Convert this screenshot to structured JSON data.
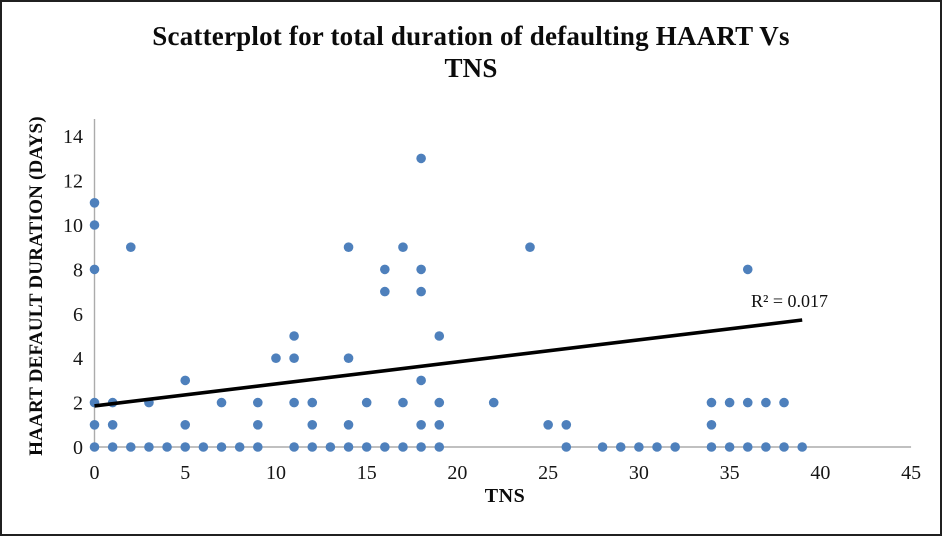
{
  "figure": {
    "title_line1": "Scatterplot for total duration of defaulting HAART Vs",
    "title_line2": "TNS"
  },
  "chart_data": {
    "type": "scatter",
    "title": "Scatterplot for total duration of defaulting HAART Vs TNS",
    "xlabel": "TNS",
    "ylabel": "HAART DEFAULT DURATION (DAYS)",
    "xlim": [
      0,
      45
    ],
    "ylim": [
      0,
      14
    ],
    "x_ticks": [
      0,
      5,
      10,
      15,
      20,
      25,
      30,
      35,
      40,
      45
    ],
    "y_ticks": [
      0,
      2,
      4,
      6,
      8,
      10,
      12,
      14
    ],
    "grid": false,
    "legend": false,
    "annotation": "R² = 0.017",
    "annotation_xy": [
      38.3,
      6.3
    ],
    "marker_color": "#4E80BC",
    "axis_color": "#ABABAB",
    "trendline": {
      "x1": 0,
      "y1": 1.85,
      "x2": 39,
      "y2": 5.72,
      "color": "#000000"
    },
    "points": [
      [
        0,
        0
      ],
      [
        1,
        0
      ],
      [
        2,
        0
      ],
      [
        3,
        0
      ],
      [
        4,
        0
      ],
      [
        5,
        0
      ],
      [
        6,
        0
      ],
      [
        7,
        0
      ],
      [
        8,
        0
      ],
      [
        9,
        0
      ],
      [
        11,
        0
      ],
      [
        12,
        0
      ],
      [
        13,
        0
      ],
      [
        14,
        0
      ],
      [
        15,
        0
      ],
      [
        16,
        0
      ],
      [
        17,
        0
      ],
      [
        18,
        0
      ],
      [
        19,
        0
      ],
      [
        26,
        0
      ],
      [
        28,
        0
      ],
      [
        29,
        0
      ],
      [
        30,
        0
      ],
      [
        31,
        0
      ],
      [
        32,
        0
      ],
      [
        34,
        0
      ],
      [
        35,
        0
      ],
      [
        36,
        0
      ],
      [
        37,
        0
      ],
      [
        38,
        0
      ],
      [
        39,
        0
      ],
      [
        0,
        1
      ],
      [
        1,
        1
      ],
      [
        5,
        1
      ],
      [
        9,
        1
      ],
      [
        12,
        1
      ],
      [
        14,
        1
      ],
      [
        18,
        1
      ],
      [
        19,
        1
      ],
      [
        25,
        1
      ],
      [
        26,
        1
      ],
      [
        34,
        1
      ],
      [
        0,
        2
      ],
      [
        1,
        2
      ],
      [
        3,
        2
      ],
      [
        7,
        2
      ],
      [
        9,
        2
      ],
      [
        11,
        2
      ],
      [
        12,
        2
      ],
      [
        15,
        2
      ],
      [
        17,
        2
      ],
      [
        19,
        2
      ],
      [
        22,
        2
      ],
      [
        34,
        2
      ],
      [
        35,
        2
      ],
      [
        36,
        2
      ],
      [
        37,
        2
      ],
      [
        38,
        2
      ],
      [
        5,
        3
      ],
      [
        18,
        3
      ],
      [
        10,
        4
      ],
      [
        11,
        4
      ],
      [
        14,
        4
      ],
      [
        11,
        5
      ],
      [
        19,
        5
      ],
      [
        16,
        7
      ],
      [
        18,
        7
      ],
      [
        0,
        8
      ],
      [
        16,
        8
      ],
      [
        18,
        8
      ],
      [
        36,
        8
      ],
      [
        2,
        9
      ],
      [
        14,
        9
      ],
      [
        17,
        9
      ],
      [
        24,
        9
      ],
      [
        0,
        10
      ],
      [
        0,
        11
      ],
      [
        18,
        13
      ]
    ]
  }
}
